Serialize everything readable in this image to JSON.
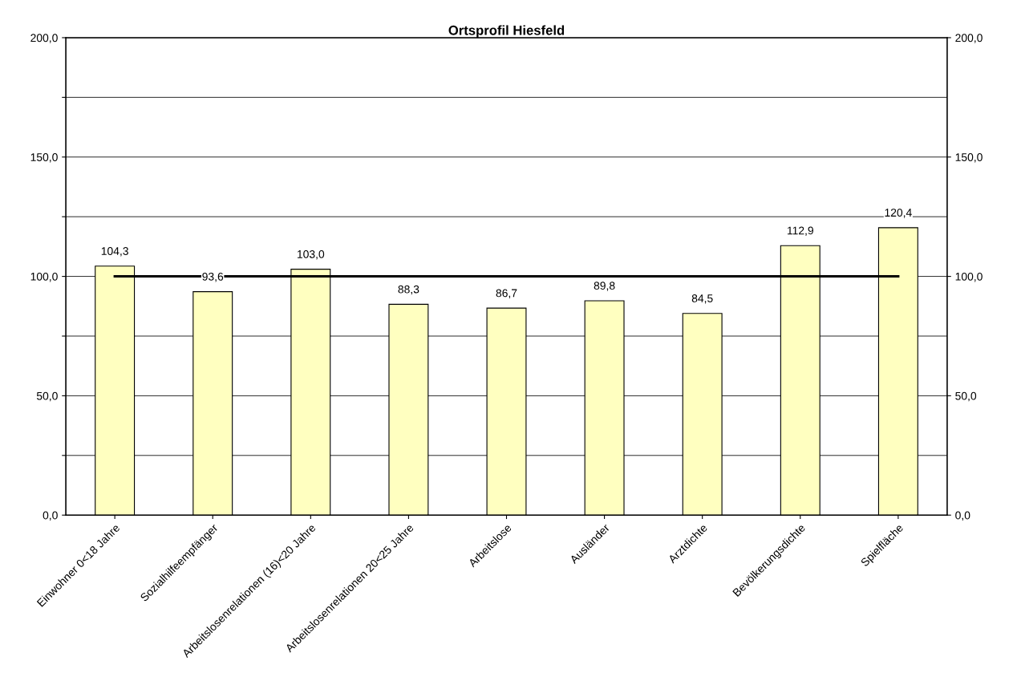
{
  "chart_data": {
    "type": "bar",
    "title": "Ortsprofil Hiesfeld",
    "categories": [
      "Einwohner 0<18 Jahre",
      "Sozialhilfeempfänger",
      "Arbeitslosenrelationen (16)<20 Jahre",
      "Arbeitslosenrelationen 20<25 Jahre",
      "Arbeitslose",
      "Ausländer",
      "Arztdichte",
      "Bevölkerungsdichte",
      "Spielfläche"
    ],
    "series": [
      {
        "color": "#ffffc0",
        "values": [
          104.3,
          93.6,
          103.0,
          88.3,
          86.7,
          89.8,
          84.5,
          112.9,
          120.4
        ],
        "value_labels": [
          "104,3",
          "93,6",
          "103,0",
          "88,3",
          "86,7",
          "89,8",
          "84,5",
          "112,9",
          "120,4"
        ]
      },
      {
        "type": "line",
        "color": "#000000",
        "values": [
          100,
          100,
          100,
          100,
          100,
          100,
          100,
          100,
          100
        ]
      }
    ],
    "ylim": [
      0,
      200
    ],
    "yticks": [
      {
        "value": 0,
        "label": "0,0"
      },
      {
        "value": 25,
        "label": null
      },
      {
        "value": 50,
        "label": "50,0"
      },
      {
        "value": 75,
        "label": null
      },
      {
        "value": 100,
        "label": "100,0"
      },
      {
        "value": 125,
        "label": null
      },
      {
        "value": 150,
        "label": "150,0"
      },
      {
        "value": 175,
        "label": null
      },
      {
        "value": 200,
        "label": "200,0"
      }
    ],
    "y2lim": [
      0,
      200
    ],
    "y2ticks": [
      {
        "value": 0,
        "label": "0,0"
      },
      {
        "value": 50,
        "label": "50,0"
      },
      {
        "value": 100,
        "label": "100,0"
      },
      {
        "value": 150,
        "label": "150,0"
      },
      {
        "value": 200,
        "label": "200,0"
      }
    ],
    "grid": "y",
    "legend": false,
    "marker": "none",
    "line_style": "solid"
  }
}
